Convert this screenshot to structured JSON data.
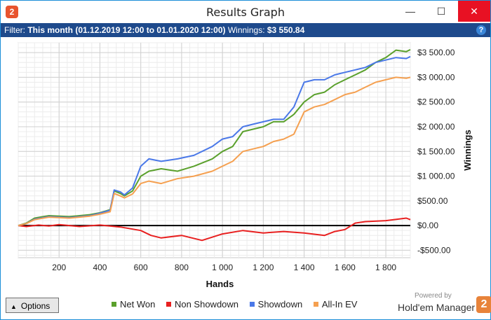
{
  "window": {
    "app_icon_label": "2",
    "title": "Results Graph",
    "minimize_glyph": "—",
    "maximize_glyph": "☐",
    "close_glyph": "✕"
  },
  "filter": {
    "label": "Filter:",
    "value": "This month (01.12.2019 12:00 to 01.01.2020 12:00)",
    "winnings_label": "Winnings:",
    "winnings_value": "$3 550.84",
    "help_glyph": "?"
  },
  "chart_data": {
    "type": "line",
    "xlabel": "Hands",
    "ylabel": "Winnings",
    "xlim": [
      0,
      1920
    ],
    "ylim": [
      -650,
      3700
    ],
    "x_ticks": [
      200,
      400,
      600,
      800,
      1000,
      1200,
      1400,
      1600,
      1800
    ],
    "x_tick_labels": [
      "200",
      "400",
      "600",
      "800",
      "1 000",
      "1 200",
      "1 400",
      "1 600",
      "1 800"
    ],
    "y_ticks": [
      3500,
      3000,
      2500,
      2000,
      1500,
      1000,
      500,
      0,
      -500
    ],
    "y_tick_labels": [
      "$3 500.00",
      "$3 000.00",
      "$2 500.00",
      "$2 000.00",
      "$1 500.00",
      "$1 000.00",
      "$500.00",
      "$0.00",
      "-$500.00"
    ],
    "grid": true,
    "legend_position": "bottom",
    "series": [
      {
        "name": "Net Won",
        "color": "#5aa02c",
        "x": [
          0,
          40,
          80,
          150,
          250,
          350,
          400,
          450,
          470,
          500,
          520,
          560,
          600,
          640,
          700,
          780,
          860,
          950,
          1000,
          1050,
          1100,
          1150,
          1200,
          1250,
          1300,
          1350,
          1400,
          1450,
          1500,
          1550,
          1600,
          1650,
          1700,
          1750,
          1800,
          1850,
          1900,
          1920
        ],
        "y": [
          0,
          50,
          150,
          200,
          180,
          220,
          260,
          320,
          700,
          650,
          600,
          700,
          1000,
          1100,
          1150,
          1100,
          1200,
          1350,
          1500,
          1600,
          1900,
          1950,
          2000,
          2100,
          2100,
          2250,
          2500,
          2650,
          2700,
          2850,
          2950,
          3050,
          3150,
          3300,
          3400,
          3550,
          3520,
          3560
        ]
      },
      {
        "name": "Non Showdown",
        "color": "#e82020",
        "x": [
          0,
          40,
          100,
          150,
          200,
          300,
          400,
          500,
          600,
          650,
          700,
          800,
          900,
          1000,
          1100,
          1200,
          1300,
          1400,
          1500,
          1550,
          1600,
          1650,
          1700,
          1800,
          1900,
          1920
        ],
        "y": [
          0,
          -20,
          10,
          -10,
          20,
          -20,
          10,
          -30,
          -100,
          -200,
          -250,
          -200,
          -300,
          -170,
          -100,
          -150,
          -120,
          -150,
          -200,
          -120,
          -80,
          50,
          80,
          100,
          150,
          120
        ]
      },
      {
        "name": "Showdown",
        "color": "#4a78e8",
        "x": [
          0,
          40,
          80,
          150,
          250,
          350,
          400,
          450,
          470,
          500,
          520,
          560,
          600,
          640,
          700,
          780,
          860,
          950,
          1000,
          1050,
          1100,
          1150,
          1200,
          1250,
          1300,
          1350,
          1400,
          1450,
          1500,
          1550,
          1600,
          1650,
          1700,
          1750,
          1800,
          1850,
          1900,
          1920
        ],
        "y": [
          0,
          40,
          130,
          180,
          160,
          200,
          250,
          310,
          720,
          680,
          620,
          760,
          1200,
          1350,
          1300,
          1350,
          1420,
          1600,
          1750,
          1800,
          2000,
          2050,
          2100,
          2150,
          2150,
          2400,
          2900,
          2950,
          2950,
          3050,
          3100,
          3150,
          3200,
          3300,
          3350,
          3400,
          3380,
          3420
        ]
      },
      {
        "name": "All-In EV",
        "color": "#f5a050",
        "x": [
          0,
          40,
          80,
          150,
          250,
          350,
          400,
          450,
          470,
          500,
          520,
          560,
          600,
          640,
          700,
          780,
          860,
          950,
          1000,
          1050,
          1100,
          1150,
          1200,
          1250,
          1300,
          1350,
          1400,
          1450,
          1500,
          1550,
          1600,
          1650,
          1700,
          1750,
          1800,
          1850,
          1900,
          1920
        ],
        "y": [
          0,
          40,
          120,
          170,
          150,
          190,
          230,
          280,
          650,
          600,
          560,
          640,
          850,
          900,
          850,
          950,
          1000,
          1100,
          1200,
          1300,
          1500,
          1550,
          1600,
          1700,
          1750,
          1850,
          2300,
          2400,
          2450,
          2550,
          2650,
          2700,
          2800,
          2900,
          2950,
          3000,
          2980,
          3000
        ]
      }
    ]
  },
  "bottom": {
    "options_label": "Options",
    "legend": [
      "Net Won",
      "Non Showdown",
      "Showdown",
      "All-In EV"
    ],
    "powered_by": "Powered by",
    "brand": "Hold'em Manager",
    "brand_logo": "2"
  }
}
